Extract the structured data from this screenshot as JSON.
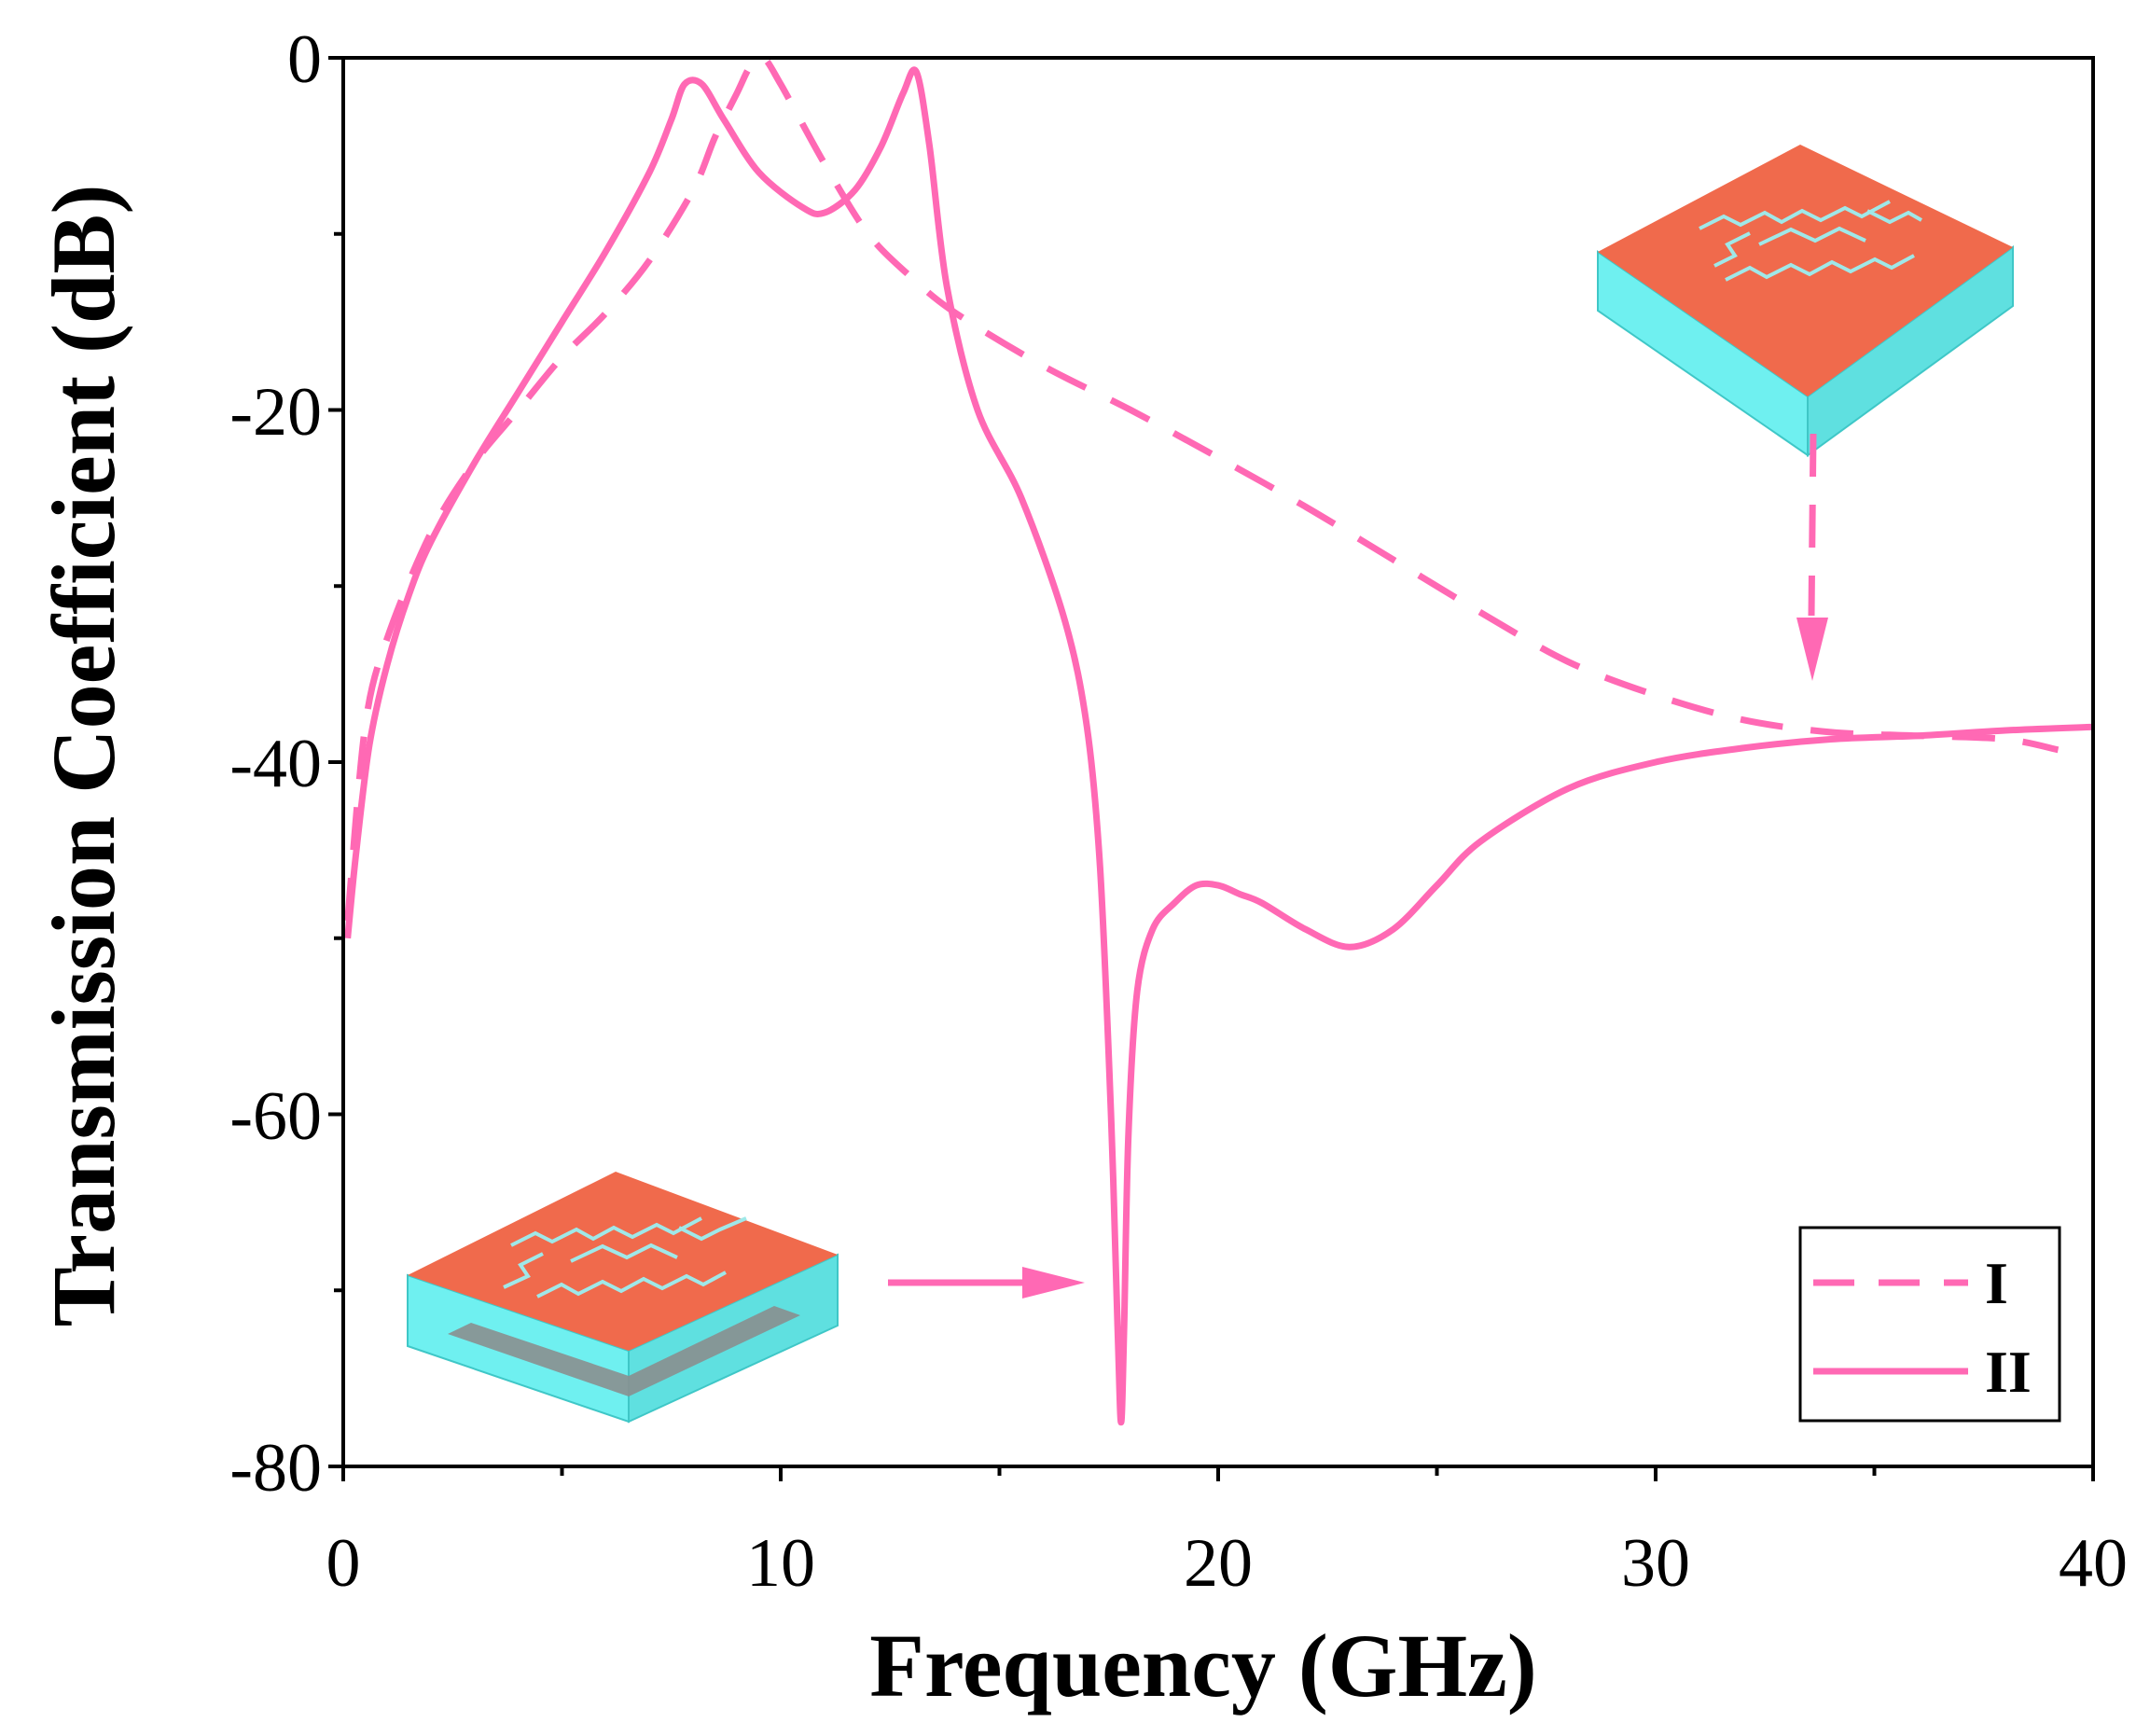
{
  "chart_data": {
    "type": "line",
    "title": "",
    "xlabel": "Frequency (GHz)",
    "ylabel": "Transmission Coefficient (dB)",
    "xlim": [
      0,
      40
    ],
    "ylim": [
      -80,
      0
    ],
    "xticks": [
      0,
      10,
      20,
      30,
      40
    ],
    "xticks_minor": [
      5,
      15,
      25,
      35
    ],
    "yticks": [
      0,
      -20,
      -40,
      -60,
      -80
    ],
    "yticks_minor": [
      -10,
      -30,
      -50,
      -70
    ],
    "xtick_labels": [
      "0",
      "10",
      "20",
      "30",
      "40"
    ],
    "ytick_labels": [
      "0",
      "-20",
      "-40",
      "-60",
      "-80"
    ],
    "grid": false,
    "legend_position": "bottom-right",
    "colors": {
      "series": "#ff69b4",
      "substrate": "#6ff0f0",
      "patch": "#f06a4c",
      "ground": "#8a8f8f"
    },
    "series": [
      {
        "name": "I",
        "style": "dashed",
        "x": [
          0.1,
          0.5,
          1,
          2,
          3,
          4,
          5,
          6,
          7,
          8,
          8.5,
          9,
          9.3,
          9.6,
          10,
          11,
          12,
          13,
          14,
          16,
          18,
          20,
          22,
          24,
          26,
          28,
          30,
          32,
          34,
          36,
          38,
          39.2
        ],
        "y": [
          -49,
          -38,
          -33,
          -27,
          -23,
          -20,
          -17,
          -14.5,
          -11.5,
          -7.5,
          -4.5,
          -2,
          -0.5,
          0,
          -1.5,
          -6,
          -10,
          -12.5,
          -14.5,
          -17.5,
          -20,
          -22.7,
          -25.5,
          -28.5,
          -31.5,
          -34.3,
          -36.2,
          -37.6,
          -38.3,
          -38.5,
          -38.7,
          -39.3
        ]
      },
      {
        "name": "II",
        "style": "solid",
        "x": [
          0.1,
          0.3,
          0.6,
          1,
          1.5,
          2,
          3,
          4,
          5,
          6,
          7,
          7.5,
          7.8,
          8.2,
          8.7,
          9.5,
          10.5,
          11,
          11.7,
          12.3,
          12.8,
          13.1,
          13.4,
          13.8,
          14.5,
          15.5,
          16.5,
          17,
          17.3,
          17.55,
          17.7,
          17.78,
          17.85,
          17.95,
          18.15,
          18.5,
          19,
          19.5,
          20,
          20.5,
          21,
          22,
          23,
          24,
          25,
          26,
          28,
          30,
          32,
          34,
          36,
          38,
          40
        ],
        "y": [
          -50,
          -45,
          -39,
          -34.5,
          -30.5,
          -27.5,
          -23,
          -19,
          -15,
          -11,
          -6.5,
          -3.5,
          -1.5,
          -1.5,
          -3.5,
          -6.5,
          -8.5,
          -8.8,
          -7.5,
          -5,
          -2,
          -0.8,
          -5,
          -13,
          -20,
          -25,
          -32,
          -38,
          -46,
          -60,
          -72,
          -77.5,
          -72,
          -61,
          -53,
          -49.5,
          -48,
          -47,
          -47,
          -47.5,
          -48,
          -49.5,
          -50.5,
          -49.5,
          -47,
          -44.5,
          -41.5,
          -40,
          -39.2,
          -38.7,
          -38.5,
          -38.2,
          -38
        ]
      }
    ],
    "legend": [
      {
        "label": "I",
        "style": "dashed"
      },
      {
        "label": "II",
        "style": "solid"
      }
    ],
    "annotations": [
      {
        "type": "arrow",
        "direction": "down",
        "target_series": "I",
        "target_x": 33.5,
        "target_y": -38
      },
      {
        "type": "arrow",
        "direction": "right",
        "target_series": "II",
        "target_x": 17.2,
        "target_y": -72.5
      }
    ]
  }
}
